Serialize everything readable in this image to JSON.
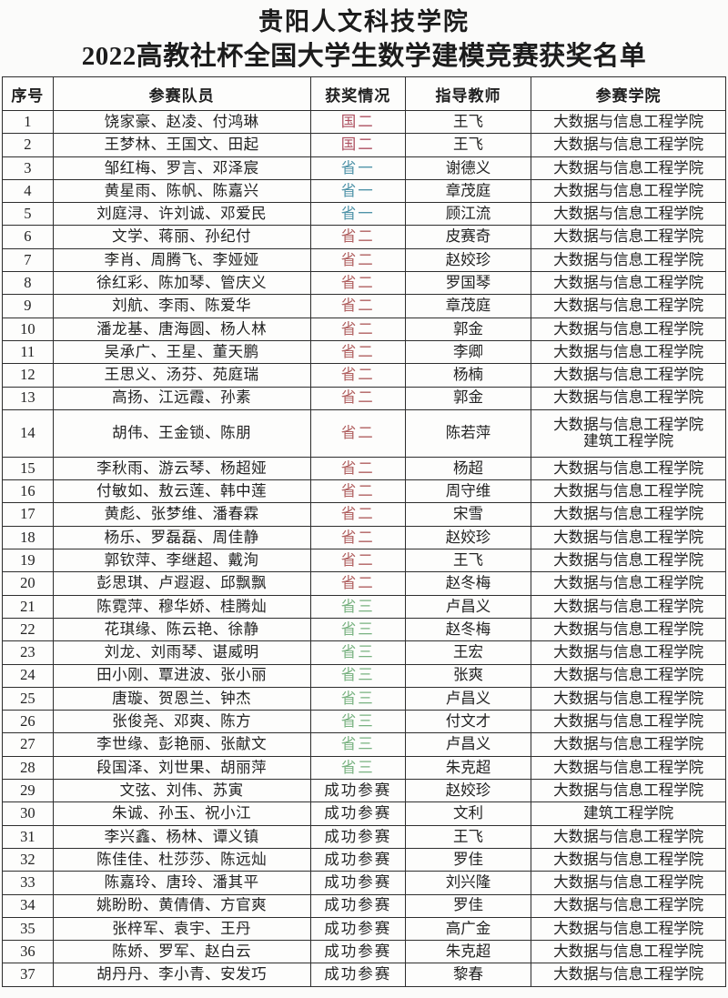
{
  "page": {
    "title_line1": "贵阳人文科技学院",
    "title_line2": "2022高教社杯全国大学生数学建模竞赛获奖名单"
  },
  "table": {
    "headers": [
      "序号",
      "参赛队员",
      "获奖情况",
      "指导教师",
      "参赛学院"
    ],
    "award_colors": {
      "国二": "#ad4f5f",
      "省一": "#4f93a8",
      "省二": "#b06060",
      "省三": "#79b281",
      "成功参赛": "#262626"
    },
    "rows": [
      {
        "no": "1",
        "members": "饶家豪、赵凌、付鸿琳",
        "award": "国二",
        "teacher": "王飞",
        "college": "大数据与信息工程学院"
      },
      {
        "no": "2",
        "members": "王梦林、王国文、田起",
        "award": "国二",
        "teacher": "王飞",
        "college": "大数据与信息工程学院"
      },
      {
        "no": "3",
        "members": "邹红梅、罗言、邓泽宸",
        "award": "省一",
        "teacher": "谢德义",
        "college": "大数据与信息工程学院"
      },
      {
        "no": "4",
        "members": "黄星雨、陈帆、陈嘉兴",
        "award": "省一",
        "teacher": "章茂庭",
        "college": "大数据与信息工程学院"
      },
      {
        "no": "5",
        "members": "刘庭浔、许刘诚、邓爱民",
        "award": "省一",
        "teacher": "顾江流",
        "college": "大数据与信息工程学院"
      },
      {
        "no": "6",
        "members": "文学、蒋丽、孙纪付",
        "award": "省二",
        "teacher": "皮赛奇",
        "college": "大数据与信息工程学院"
      },
      {
        "no": "7",
        "members": "李肖、周腾飞、李娅娅",
        "award": "省二",
        "teacher": "赵姣珍",
        "college": "大数据与信息工程学院"
      },
      {
        "no": "8",
        "members": "徐红彩、陈加琴、管庆义",
        "award": "省二",
        "teacher": "罗国琴",
        "college": "大数据与信息工程学院"
      },
      {
        "no": "9",
        "members": "刘航、李雨、陈爱华",
        "award": "省二",
        "teacher": "章茂庭",
        "college": "大数据与信息工程学院"
      },
      {
        "no": "10",
        "members": "潘龙基、唐海圆、杨人林",
        "award": "省二",
        "teacher": "郭金",
        "college": "大数据与信息工程学院"
      },
      {
        "no": "11",
        "members": "吴承广、王星、董天鹏",
        "award": "省二",
        "teacher": "李卿",
        "college": "大数据与信息工程学院"
      },
      {
        "no": "12",
        "members": "王思义、汤芬、苑庭瑞",
        "award": "省二",
        "teacher": "杨楠",
        "college": "大数据与信息工程学院"
      },
      {
        "no": "13",
        "members": "高扬、江远霞、孙素",
        "award": "省二",
        "teacher": "郭金",
        "college": "大数据与信息工程学院"
      },
      {
        "no": "14",
        "members": "胡伟、王金锁、陈朋",
        "award": "省二",
        "teacher": "陈若萍",
        "college": "大数据与信息工程学院\n建筑工程学院",
        "tall": true
      },
      {
        "no": "15",
        "members": "李秋雨、游云琴、杨超娅",
        "award": "省二",
        "teacher": "杨超",
        "college": "大数据与信息工程学院"
      },
      {
        "no": "16",
        "members": "付敏如、敖云莲、韩中莲",
        "award": "省二",
        "teacher": "周守维",
        "college": "大数据与信息工程学院"
      },
      {
        "no": "17",
        "members": "黄彪、张梦维、潘春霖",
        "award": "省二",
        "teacher": "宋雪",
        "college": "大数据与信息工程学院"
      },
      {
        "no": "18",
        "members": "杨乐、罗磊磊、周佳静",
        "award": "省二",
        "teacher": "赵姣珍",
        "college": "大数据与信息工程学院"
      },
      {
        "no": "19",
        "members": "郭钦萍、李继超、戴洵",
        "award": "省二",
        "teacher": "王飞",
        "college": "大数据与信息工程学院"
      },
      {
        "no": "20",
        "members": "彭思琪、卢遐遐、邱飘飘",
        "award": "省二",
        "teacher": "赵冬梅",
        "college": "大数据与信息工程学院"
      },
      {
        "no": "21",
        "members": "陈霓萍、穆华娇、桂腾灿",
        "award": "省三",
        "teacher": "卢昌义",
        "college": "大数据与信息工程学院"
      },
      {
        "no": "22",
        "members": "花琪缘、陈云艳、徐静",
        "award": "省三",
        "teacher": "赵冬梅",
        "college": "大数据与信息工程学院"
      },
      {
        "no": "23",
        "members": "刘龙、刘雨琴、谌威明",
        "award": "省三",
        "teacher": "王宏",
        "college": "大数据与信息工程学院"
      },
      {
        "no": "24",
        "members": "田小刚、覃进波、张小丽",
        "award": "省三",
        "teacher": "张爽",
        "college": "大数据与信息工程学院"
      },
      {
        "no": "25",
        "members": "唐璇、贺恩兰、钟杰",
        "award": "省三",
        "teacher": "卢昌义",
        "college": "大数据与信息工程学院"
      },
      {
        "no": "26",
        "members": "张俊尧、邓爽、陈方",
        "award": "省三",
        "teacher": "付文才",
        "college": "大数据与信息工程学院"
      },
      {
        "no": "27",
        "members": "李世缘、彭艳丽、张献文",
        "award": "省三",
        "teacher": "卢昌义",
        "college": "大数据与信息工程学院"
      },
      {
        "no": "28",
        "members": "段国泽、刘世果、胡丽萍",
        "award": "省三",
        "teacher": "朱克超",
        "college": "大数据与信息工程学院"
      },
      {
        "no": "29",
        "members": "文弦、刘伟、苏寅",
        "award": "成功参赛",
        "teacher": "赵姣珍",
        "college": "大数据与信息工程学院"
      },
      {
        "no": "30",
        "members": "朱诚、孙玉、祝小江",
        "award": "成功参赛",
        "teacher": "文利",
        "college": "建筑工程学院"
      },
      {
        "no": "31",
        "members": "李兴鑫、杨林、谭义镇",
        "award": "成功参赛",
        "teacher": "王飞",
        "college": "大数据与信息工程学院"
      },
      {
        "no": "32",
        "members": "陈佳佳、杜莎莎、陈远灿",
        "award": "成功参赛",
        "teacher": "罗佳",
        "college": "大数据与信息工程学院"
      },
      {
        "no": "33",
        "members": "陈嘉玲、唐玲、潘其平",
        "award": "成功参赛",
        "teacher": "刘兴隆",
        "college": "大数据与信息工程学院"
      },
      {
        "no": "34",
        "members": "姚盼盼、黄倩倩、方官爽",
        "award": "成功参赛",
        "teacher": "罗佳",
        "college": "大数据与信息工程学院"
      },
      {
        "no": "35",
        "members": "张梓军、袁宇、王丹",
        "award": "成功参赛",
        "teacher": "高广金",
        "college": "大数据与信息工程学院"
      },
      {
        "no": "36",
        "members": "陈娇、罗军、赵白云",
        "award": "成功参赛",
        "teacher": "朱克超",
        "college": "大数据与信息工程学院"
      },
      {
        "no": "37",
        "members": "胡丹丹、李小青、安发巧",
        "award": "成功参赛",
        "teacher": "黎春",
        "college": "大数据与信息工程学院"
      }
    ]
  }
}
